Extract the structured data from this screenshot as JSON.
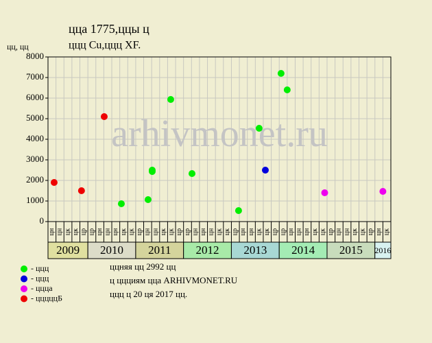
{
  "chart_data": {
    "type": "scatter",
    "title": "ццa 1775,ццы ц",
    "subtitle": "ццц Cu,ццц XF.",
    "y_label": "цц, цц",
    "watermark": "arhivmonet.ru",
    "categories": [
      "цн",
      "цн",
      "цк",
      "цк",
      "цр",
      "цр",
      "цн",
      "цн",
      "цн",
      "цк",
      "цк",
      "цр",
      "цн",
      "цн",
      "цк",
      "цк",
      "цр",
      "цр",
      "цн",
      "цн",
      "цн",
      "цк",
      "цк",
      "цр",
      "цн",
      "цн",
      "цк",
      "цк",
      "цр",
      "цр",
      "цн",
      "цн",
      "цн",
      "цк",
      "цк",
      "цр",
      "цн",
      "цн",
      "цк",
      "цк",
      "цр",
      "цн",
      "цк"
    ],
    "year_groups": [
      {
        "label": "2009",
        "columns": 5,
        "color": "#e0e0a0"
      },
      {
        "label": "2010",
        "columns": 6,
        "color": "#dcdcc8"
      },
      {
        "label": "2011",
        "columns": 6,
        "color": "#d4d49c"
      },
      {
        "label": "2012",
        "columns": 6,
        "color": "#a8eaa8"
      },
      {
        "label": "2013",
        "columns": 6,
        "color": "#a8d8d4"
      },
      {
        "label": "2014",
        "columns": 6,
        "color": "#a4ecb4"
      },
      {
        "label": "2015",
        "columns": 6,
        "color": "#c8dcbc"
      },
      {
        "label": "2016",
        "columns": 2,
        "color": "#d8f2f0"
      }
    ],
    "xlim": [
      0,
      43
    ],
    "ylim": [
      0,
      8000
    ],
    "yticks": [
      0,
      1000,
      2000,
      3000,
      4000,
      5000,
      6000,
      7000,
      8000
    ],
    "grid": true,
    "series": [
      {
        "name": "- ццц",
        "color": "#00ee00",
        "x": [
          9.2,
          12.55,
          13.07,
          13.07,
          15.39,
          18.06,
          23.9,
          26.48,
          29.23,
          30.0
        ],
        "values": [
          867,
          1067,
          2433,
          2500,
          5933,
          2333,
          533,
          4533,
          7200,
          6400
        ]
      },
      {
        "name": "- ццц",
        "color": "#0000dd",
        "x": [
          27.26
        ],
        "values": [
          2500
        ]
      },
      {
        "name": "- ццца",
        "color": "#ee00ee",
        "x": [
          34.7,
          42.0
        ],
        "values": [
          1400,
          1467
        ]
      },
      {
        "name": "- цццццБ",
        "color": "#ee0000",
        "x": [
          0.77,
          4.2,
          7.05
        ],
        "values": [
          1900,
          1500,
          5100
        ]
      }
    ],
    "notes": [
      "ццняя цц 2992 цц",
      "ц ццциям цца ARHIVMONET.RU",
      "ццц ц 20 ця 2017 цц."
    ]
  }
}
